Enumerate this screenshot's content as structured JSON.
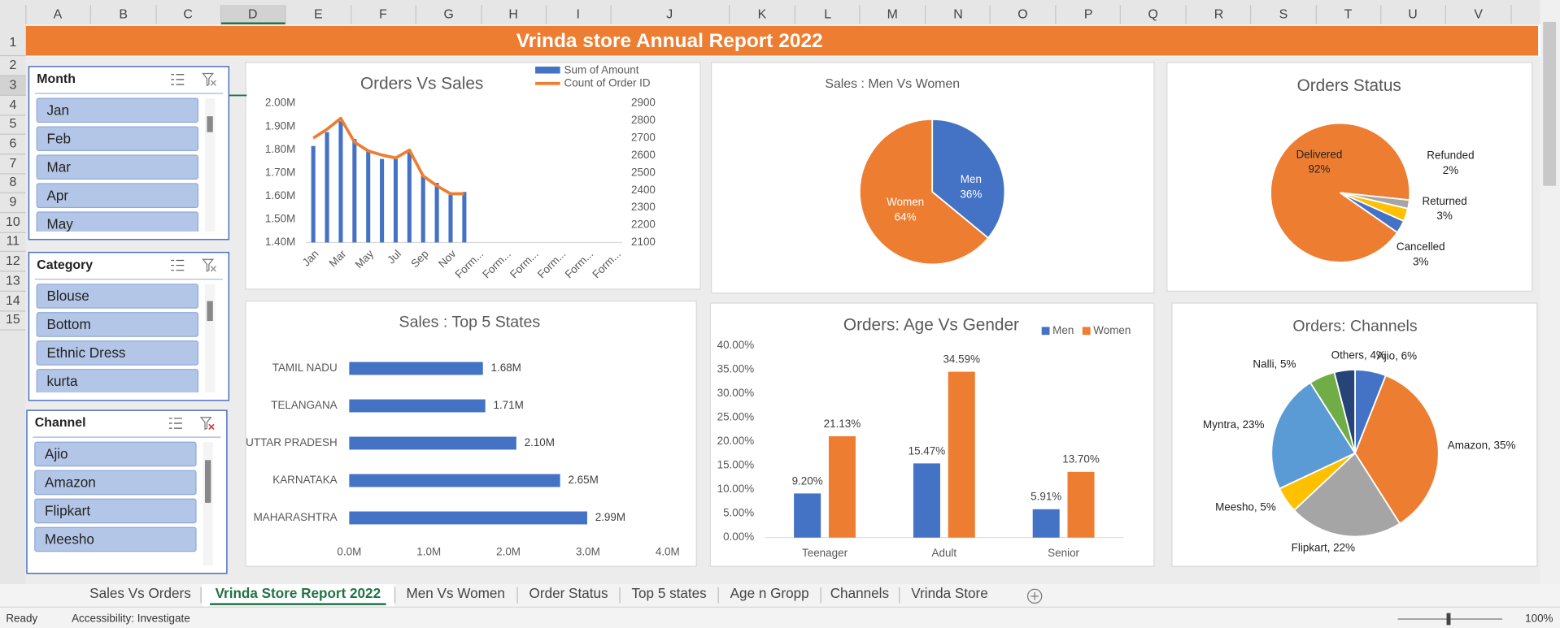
{
  "spreadsheet": {
    "columns": [
      "A",
      "B",
      "C",
      "D",
      "E",
      "F",
      "G",
      "H",
      "I",
      "J",
      "K",
      "L",
      "M",
      "N",
      "O",
      "P",
      "Q",
      "R",
      "S",
      "T",
      "U",
      "V"
    ],
    "rows": [
      "1",
      "2",
      "3",
      "4",
      "5",
      "6",
      "7",
      "8",
      "9",
      "10",
      "11",
      "12",
      "13",
      "14",
      "15"
    ],
    "banner": "Vrinda store Annual Report 2022",
    "sheets": [
      "Sales Vs Orders",
      "Vrinda Store Report 2022",
      "Men Vs Women",
      "Order Status",
      "Top 5 states",
      "Age n Gropp",
      "Channels",
      "Vrinda Store"
    ],
    "active_sheet": 1,
    "status": "Ready",
    "accessibility": "Accessibility: Investigate",
    "zoom": "100%"
  },
  "slicers": [
    {
      "title": "Month",
      "items": [
        "Jan",
        "Feb",
        "Mar",
        "Apr",
        "May"
      ]
    },
    {
      "title": "Category",
      "items": [
        "Blouse",
        "Bottom",
        "Ethnic Dress",
        "kurta"
      ]
    },
    {
      "title": "Channel",
      "items": [
        "Ajio",
        "Amazon",
        "Flipkart",
        "Meesho"
      ]
    }
  ],
  "chart_data": [
    {
      "type": "bar",
      "title": "Orders Vs Sales",
      "categories": [
        "Jan",
        null,
        "Mar",
        null,
        "May",
        null,
        "Jul",
        null,
        "Sep",
        null,
        "Nov",
        null,
        "Form...",
        null,
        "Form...",
        null,
        "Form...",
        null,
        "Form...",
        null,
        "Form...",
        null,
        "Form..."
      ],
      "series": [
        {
          "name": "Sum of Amount",
          "color": "#4472c4",
          "values": [
            1816000,
            1876000,
            1923000,
            1846000,
            1800000,
            1760000,
            1760000,
            1800000,
            1687000,
            1657000,
            1606000,
            1618000,
            null,
            null,
            null,
            null,
            null,
            null,
            null,
            null,
            null,
            null,
            null
          ]
        },
        {
          "name": "Count of Order ID",
          "color": "#ed7d31",
          "type": "line",
          "axis": "y2",
          "values": [
            2700,
            2751,
            2814,
            2677,
            2626,
            2603,
            2586,
            2631,
            2483,
            2426,
            2380,
            2380,
            null,
            null,
            null,
            null,
            null,
            null,
            null,
            null,
            null,
            null,
            null
          ]
        }
      ],
      "ylim": [
        1400000,
        2000000
      ],
      "yticks": [
        {
          "value": 1400000,
          "label": "1.40M"
        },
        {
          "value": 1500000,
          "label": "1.50M"
        },
        {
          "value": 1600000,
          "label": "1.60M"
        },
        {
          "value": 1700000,
          "label": "1.70M"
        },
        {
          "value": 1800000,
          "label": "1.80M"
        },
        {
          "value": 1900000,
          "label": "1.90M"
        },
        {
          "value": 2000000,
          "label": "2.00M"
        }
      ],
      "y2lim": [
        2100,
        2900
      ],
      "y2ticks": [
        2100,
        2200,
        2300,
        2400,
        2500,
        2600,
        2700,
        2800,
        2900
      ],
      "legend": "top-right",
      "grid": false
    },
    {
      "type": "pie",
      "title": "Sales : Men Vs Women",
      "categories": [
        "Men",
        "Women"
      ],
      "values": [
        36,
        64
      ],
      "value_labels": [
        "36%",
        "64%"
      ],
      "colors": [
        "#4472c4",
        "#ed7d31"
      ]
    },
    {
      "type": "pie",
      "title": "Orders Status",
      "categories": [
        "Delivered",
        "Refunded",
        "Returned",
        "Cancelled"
      ],
      "values": [
        92,
        2,
        3,
        3
      ],
      "value_labels": [
        "92%",
        "2%",
        "3%",
        "3%"
      ],
      "colors": [
        "#ed7d31",
        "#a5a5a5",
        "#ffc000",
        "#4472c4"
      ]
    },
    {
      "type": "bar",
      "orientation": "horizontal",
      "title": "Sales : Top 5 States",
      "categories": [
        "TAMIL NADU",
        "TELANGANA",
        "UTTAR PRADESH",
        "KARNATAKA",
        "MAHARASHTRA"
      ],
      "values": [
        1680000,
        1710000,
        2100000,
        2650000,
        2990000
      ],
      "value_labels": [
        "1.68M",
        "1.71M",
        "2.10M",
        "2.65M",
        "2.99M"
      ],
      "color": "#4472c4",
      "xlim": [
        0,
        4000000
      ],
      "xticks": [
        {
          "value": 0,
          "label": "0.0M"
        },
        {
          "value": 1000000,
          "label": "1.0M"
        },
        {
          "value": 2000000,
          "label": "2.0M"
        },
        {
          "value": 3000000,
          "label": "3.0M"
        },
        {
          "value": 4000000,
          "label": "4.0M"
        }
      ],
      "grid": false
    },
    {
      "type": "bar",
      "title": "Orders: Age Vs Gender",
      "categories": [
        "Teenager",
        "Adult",
        "Senior"
      ],
      "series": [
        {
          "name": "Men",
          "color": "#4472c4",
          "values": [
            9.2,
            15.47,
            5.91
          ],
          "value_labels": [
            "9.20%",
            "15.47%",
            "5.91%"
          ]
        },
        {
          "name": "Women",
          "color": "#ed7d31",
          "values": [
            21.13,
            34.59,
            13.7
          ],
          "value_labels": [
            "21.13%",
            "34.59%",
            "13.70%"
          ]
        }
      ],
      "ylim": [
        0,
        40
      ],
      "yticks": [
        {
          "value": 0,
          "label": "0.00%"
        },
        {
          "value": 5,
          "label": "5.00%"
        },
        {
          "value": 10,
          "label": "10.00%"
        },
        {
          "value": 15,
          "label": "15.00%"
        },
        {
          "value": 20,
          "label": "20.00%"
        },
        {
          "value": 25,
          "label": "25.00%"
        },
        {
          "value": 30,
          "label": "30.00%"
        },
        {
          "value": 35,
          "label": "35.00%"
        },
        {
          "value": 40,
          "label": "40.00%"
        }
      ],
      "legend": "top-right",
      "grid": false
    },
    {
      "type": "pie",
      "title": "Orders: Channels",
      "categories": [
        "Ajio",
        "Amazon",
        "Flipkart",
        "Meesho",
        "Myntra",
        "Nalli",
        "Others"
      ],
      "values": [
        6,
        35,
        22,
        5,
        23,
        5,
        4
      ],
      "value_labels": [
        "Ajio, 6%",
        "Amazon, 35%",
        "Flipkart, 22%",
        "Meesho, 5%",
        "Myntra, 23%",
        "Nalli, 5%",
        "Others, 4%"
      ],
      "colors": [
        "#4472c4",
        "#ed7d31",
        "#a5a5a5",
        "#ffc000",
        "#5b9bd5",
        "#70ad47",
        "#264478"
      ]
    }
  ]
}
